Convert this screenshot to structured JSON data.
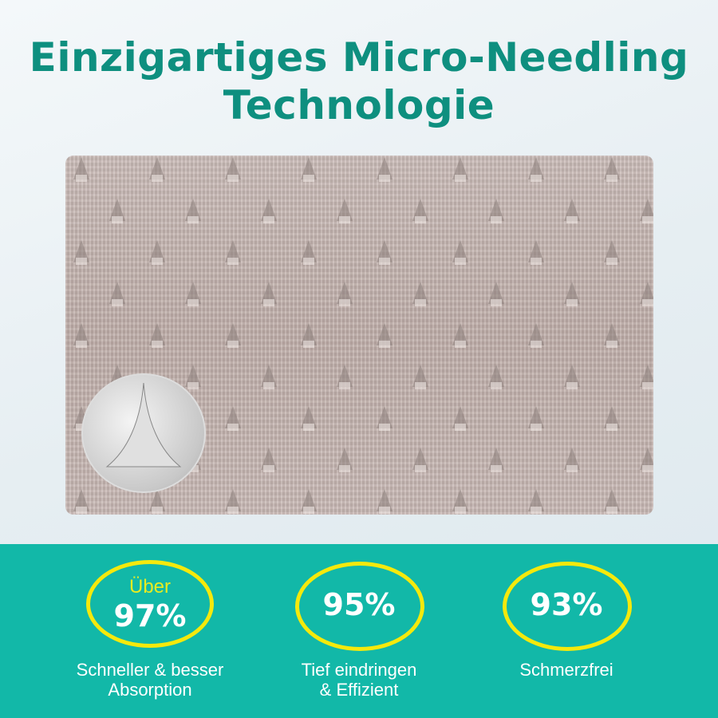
{
  "title": "Einzigartiges Micro-Needling Technologie",
  "colors": {
    "title": "#0e8f7f",
    "band": "#12b8a8",
    "ring": "#f5e90c"
  },
  "stats": [
    {
      "prefix": "Über",
      "value": "97%",
      "label_line1": "Schneller & besser",
      "label_line2": "Absorption"
    },
    {
      "value": "95%",
      "label_line1": "Tief eindringen",
      "label_line2": "& Effizient"
    },
    {
      "value": "93%",
      "label_line1": "Schmerzfrei"
    }
  ]
}
